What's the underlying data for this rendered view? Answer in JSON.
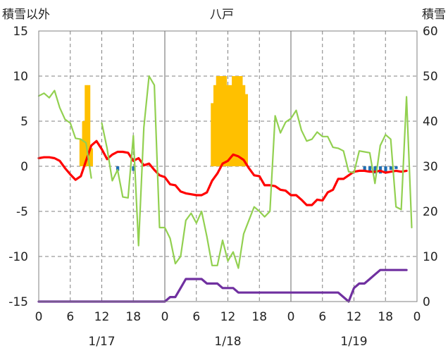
{
  "chart_data": {
    "type": "bar+line",
    "title": "八戸",
    "left_axis_label": "積雪以外",
    "right_axis_label": "積雪",
    "left_ylim": [
      -15,
      15
    ],
    "left_ticks": [
      "-15",
      "-10",
      "-5",
      "0",
      "5",
      "10",
      "15"
    ],
    "right_ylim": [
      0,
      60
    ],
    "right_ticks": [
      "0",
      "10",
      "20",
      "30",
      "40",
      "50",
      "60"
    ],
    "xlim_hours": [
      0,
      72
    ],
    "x_tick_labels": [
      "0",
      "6",
      "12",
      "18",
      "0",
      "6",
      "12",
      "18",
      "0",
      "6",
      "12",
      "18",
      "0"
    ],
    "date_labels": [
      "1/17",
      "1/18",
      "1/19"
    ],
    "grid": "dashed at 6h steps, solid at day boundaries, dashed horizontal at each left tick",
    "colors": {
      "orange_bars": "#ffc000",
      "blue_bars": "#1f6fb4",
      "red_line": "#ff0000",
      "green_line": "#92d050",
      "purple_line": "#7030a0",
      "grid": "#808080"
    },
    "series": [
      {
        "kind": "bar",
        "axis": "left",
        "color": "orange",
        "points": [
          [
            8,
            3
          ],
          [
            8.5,
            5
          ],
          [
            9,
            9
          ],
          [
            9.5,
            9
          ],
          [
            10,
            2
          ],
          [
            33,
            7
          ],
          [
            33.5,
            9
          ],
          [
            34,
            10
          ],
          [
            34.5,
            10
          ],
          [
            35,
            10
          ],
          [
            35.5,
            10
          ],
          [
            36,
            9
          ],
          [
            36.5,
            9
          ],
          [
            37,
            10
          ],
          [
            37.5,
            10
          ],
          [
            38,
            10
          ],
          [
            38.5,
            10
          ],
          [
            39,
            9
          ],
          [
            39.5,
            8
          ]
        ]
      },
      {
        "kind": "bar",
        "axis": "left",
        "color": "blue",
        "points": [
          [
            15,
            -0.5
          ],
          [
            18,
            -0.5
          ],
          [
            62,
            -0.5
          ],
          [
            63,
            -0.5
          ],
          [
            64,
            -0.8
          ],
          [
            65,
            -0.8
          ],
          [
            66,
            -0.6
          ],
          [
            67,
            -0.4
          ],
          [
            68,
            -0.3
          ]
        ]
      },
      {
        "kind": "line",
        "axis": "left",
        "color": "red",
        "points": [
          [
            0,
            0.9
          ],
          [
            1,
            1.0
          ],
          [
            2,
            1.0
          ],
          [
            3,
            0.9
          ],
          [
            4,
            0.6
          ],
          [
            5,
            -0.2
          ],
          [
            6,
            -0.9
          ],
          [
            7,
            -1.5
          ],
          [
            8,
            -1.1
          ],
          [
            9,
            0.6
          ],
          [
            10,
            2.3
          ],
          [
            11,
            2.8
          ],
          [
            12,
            1.9
          ],
          [
            13,
            0.8
          ],
          [
            14,
            1.3
          ],
          [
            15,
            1.6
          ],
          [
            16,
            1.6
          ],
          [
            17,
            1.5
          ],
          [
            18,
            0.6
          ],
          [
            19,
            0.9
          ],
          [
            20,
            0.1
          ],
          [
            21,
            0.3
          ],
          [
            22,
            -0.4
          ],
          [
            23,
            -1.0
          ],
          [
            24,
            -1.2
          ],
          [
            25,
            -2.0
          ],
          [
            26,
            -2.1
          ],
          [
            27,
            -2.8
          ],
          [
            28,
            -3.0
          ],
          [
            29,
            -3.1
          ],
          [
            30,
            -3.2
          ],
          [
            31,
            -3.2
          ],
          [
            32,
            -2.9
          ],
          [
            33,
            -1.6
          ],
          [
            34,
            -0.8
          ],
          [
            35,
            0.3
          ],
          [
            36,
            0.6
          ],
          [
            37,
            1.3
          ],
          [
            38,
            1.1
          ],
          [
            39,
            0.7
          ],
          [
            40,
            -0.2
          ],
          [
            41,
            -1.0
          ],
          [
            42,
            -1.1
          ],
          [
            43,
            -2.1
          ],
          [
            44,
            -2.1
          ],
          [
            45,
            -2.2
          ],
          [
            46,
            -2.6
          ],
          [
            47,
            -2.7
          ],
          [
            48,
            -3.2
          ],
          [
            49,
            -3.2
          ],
          [
            50,
            -3.7
          ],
          [
            51,
            -4.3
          ],
          [
            52,
            -4.3
          ],
          [
            53,
            -3.7
          ],
          [
            54,
            -3.8
          ],
          [
            55,
            -2.9
          ],
          [
            56,
            -2.6
          ],
          [
            57,
            -1.4
          ],
          [
            58,
            -1.4
          ],
          [
            59,
            -1.0
          ],
          [
            60,
            -0.6
          ],
          [
            61,
            -0.5
          ],
          [
            62,
            -0.5
          ],
          [
            63,
            -0.6
          ],
          [
            64,
            -0.6
          ],
          [
            65,
            -0.5
          ],
          [
            66,
            -0.7
          ],
          [
            67,
            -0.6
          ],
          [
            68,
            -0.5
          ],
          [
            69,
            -0.6
          ],
          [
            70,
            -0.5
          ]
        ]
      },
      {
        "kind": "line",
        "axis": "left",
        "color": "green",
        "points": [
          [
            0,
            7.8
          ],
          [
            1,
            8.1
          ],
          [
            2,
            7.6
          ],
          [
            3,
            8.4
          ],
          [
            4,
            6.5
          ],
          [
            5,
            5.2
          ],
          [
            6,
            4.8
          ],
          [
            7,
            3.1
          ],
          [
            8,
            3.0
          ],
          [
            9,
            2.6
          ],
          [
            10,
            -1.3
          ],
          [
            11,
            null
          ],
          [
            12,
            4.8
          ],
          [
            13,
            2.0
          ],
          [
            14,
            -1.6
          ],
          [
            15,
            -0.4
          ],
          [
            16,
            -3.4
          ],
          [
            17,
            -3.5
          ],
          [
            18,
            3.4
          ],
          [
            19,
            -8.8
          ],
          [
            20,
            4.3
          ],
          [
            21,
            10.0
          ],
          [
            22,
            9.0
          ],
          [
            23,
            -6.8
          ],
          [
            24,
            -6.8
          ],
          [
            25,
            -8.0
          ],
          [
            26,
            -10.8
          ],
          [
            27,
            -10.0
          ],
          [
            28,
            -6.0
          ],
          [
            29,
            -5.2
          ],
          [
            30,
            -6.3
          ],
          [
            31,
            -5.0
          ],
          [
            32,
            -7.8
          ],
          [
            33,
            -11.0
          ],
          [
            34,
            -11.0
          ],
          [
            35,
            -8.2
          ],
          [
            36,
            -10.5
          ],
          [
            37,
            -9.5
          ],
          [
            38,
            -11.3
          ],
          [
            39,
            -7.5
          ],
          [
            40,
            -6.0
          ],
          [
            41,
            -4.5
          ],
          [
            42,
            -5.0
          ],
          [
            43,
            -5.6
          ],
          [
            44,
            -5.0
          ],
          [
            45,
            5.6
          ],
          [
            46,
            3.7
          ],
          [
            47,
            4.9
          ],
          [
            48,
            5.3
          ],
          [
            49,
            6.2
          ],
          [
            50,
            4.0
          ],
          [
            51,
            2.8
          ],
          [
            52,
            3.0
          ],
          [
            53,
            3.8
          ],
          [
            54,
            3.3
          ],
          [
            55,
            3.3
          ],
          [
            56,
            2.1
          ],
          [
            57,
            2.0
          ],
          [
            58,
            1.7
          ],
          [
            59,
            -0.6
          ],
          [
            60,
            -0.7
          ],
          [
            61,
            1.7
          ],
          [
            62,
            1.6
          ],
          [
            63,
            1.5
          ],
          [
            64,
            -1.9
          ],
          [
            65,
            2.3
          ],
          [
            66,
            3.5
          ],
          [
            67,
            3.0
          ],
          [
            68,
            -4.5
          ],
          [
            69,
            -4.8
          ],
          [
            70,
            7.7
          ],
          [
            71,
            -6.8
          ]
        ]
      },
      {
        "kind": "line",
        "axis": "right",
        "color": "purple",
        "points": [
          [
            0,
            0
          ],
          [
            23,
            0
          ],
          [
            24,
            0
          ],
          [
            25,
            1
          ],
          [
            26,
            1
          ],
          [
            27,
            3
          ],
          [
            28,
            5
          ],
          [
            29,
            5
          ],
          [
            30,
            5
          ],
          [
            31,
            5
          ],
          [
            32,
            4
          ],
          [
            33,
            4
          ],
          [
            34,
            4
          ],
          [
            35,
            3
          ],
          [
            36,
            3
          ],
          [
            37,
            3
          ],
          [
            38,
            2
          ],
          [
            39,
            2
          ],
          [
            40,
            2
          ],
          [
            41,
            2
          ],
          [
            42,
            2
          ],
          [
            43,
            2
          ],
          [
            44,
            2
          ],
          [
            45,
            2
          ],
          [
            46,
            2
          ],
          [
            47,
            2
          ],
          [
            48,
            2
          ],
          [
            49,
            2
          ],
          [
            50,
            2
          ],
          [
            51,
            2
          ],
          [
            52,
            2
          ],
          [
            53,
            2
          ],
          [
            54,
            2
          ],
          [
            55,
            2
          ],
          [
            56,
            2
          ],
          [
            57,
            2
          ],
          [
            58,
            1
          ],
          [
            59,
            0
          ],
          [
            60,
            3
          ],
          [
            61,
            4
          ],
          [
            62,
            4
          ],
          [
            63,
            5
          ],
          [
            64,
            6
          ],
          [
            65,
            7
          ],
          [
            66,
            7
          ],
          [
            67,
            7
          ],
          [
            68,
            7
          ],
          [
            69,
            7
          ],
          [
            70,
            7
          ]
        ]
      }
    ]
  }
}
